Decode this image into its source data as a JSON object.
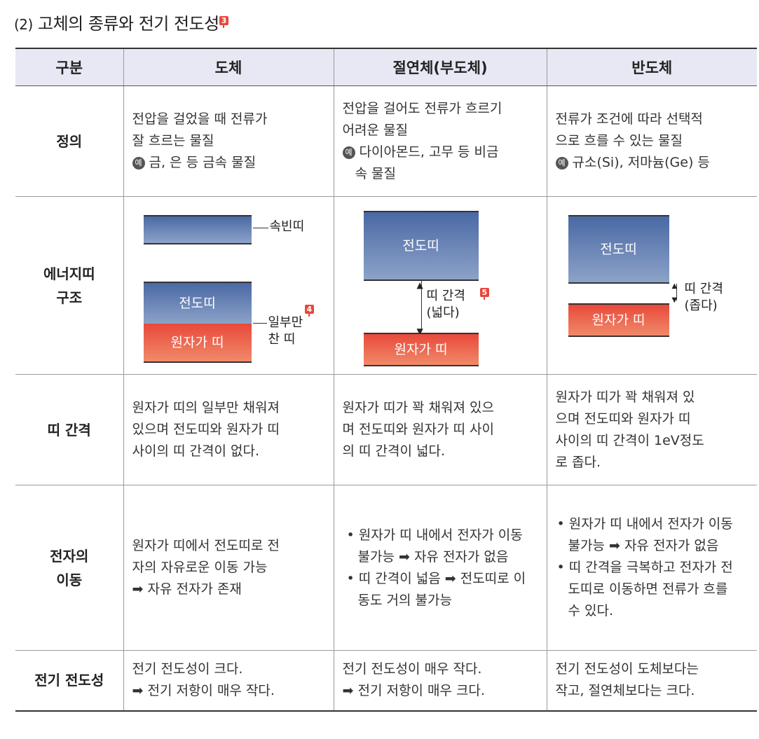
{
  "title": {
    "number": "(2)",
    "text": "고체의 종류와 전기 전도성",
    "tag": "3"
  },
  "table": {
    "headers": [
      "구분",
      "도체",
      "절연체(부도체)",
      "반도체"
    ],
    "rows": {
      "definition": {
        "label": "정의",
        "conductor": [
          "전압을 걸었을 때 전류가",
          "잘 흐르는 물질",
          "금, 은 등 금속 물질"
        ],
        "insulator": [
          "전압을 걸어도 전류가 흐르기",
          "어려운 물질",
          "다이아몬드, 고무 등 비금",
          "속 물질"
        ],
        "semiconductor": [
          "전류가 조건에 따라 선택적",
          "으로 흐를 수 있는 물질",
          "규소(Si), 저마늄(Ge) 등"
        ],
        "example_mark": "예"
      },
      "band_structure": {
        "label": [
          "에너지띠",
          "구조"
        ],
        "conductor": {
          "empty_band": "속빈띠",
          "conduction_band": "전도띠",
          "valence_band": "원자가 띠",
          "partial_label": [
            "일부만",
            "찬 띠"
          ],
          "tag": "4"
        },
        "insulator": {
          "conduction_band": "전도띠",
          "valence_band": "원자가 띠",
          "gap_label": [
            "띠 간격",
            "(넓다)"
          ],
          "tag": "5"
        },
        "semiconductor": {
          "conduction_band": "전도띠",
          "valence_band": "원자가 띠",
          "gap_label": [
            "띠 간격",
            "(좁다)"
          ]
        }
      },
      "band_gap": {
        "label": "띠 간격",
        "conductor": [
          "원자가 띠의 일부만 채워져",
          "있으며 전도띠와 원자가 띠",
          "사이의 띠 간격이 없다."
        ],
        "insulator": [
          "원자가 띠가 꽉 채워져 있으",
          "며 전도띠와 원자가 띠 사이",
          "의 띠 간격이 넓다."
        ],
        "semiconductor": [
          "원자가 띠가 꽉 채워져 있",
          "으며 전도띠와 원자가 띠",
          "사이의 띠 간격이 1eV정도",
          "로 좁다."
        ]
      },
      "electron_movement": {
        "label": [
          "전자의",
          "이동"
        ],
        "conductor": [
          "원자가 띠에서 전도띠로 전",
          "자의 자유로운 이동 가능",
          "➡ 자유 전자가 존재"
        ],
        "insulator": [
          "원자가 띠 내에서 전자가 이동 불가능 ➡ 자유 전자가 없음",
          "띠 간격이 넓음 ➡ 전도띠로 이동도 거의 불가능"
        ],
        "semiconductor": [
          "원자가 띠 내에서 전자가 이동 불가능 ➡ 자유 전자가 없음",
          "띠 간격을 극복하고 전자가 전도띠로 이동하면 전류가 흐를 수 있다."
        ]
      },
      "conductivity": {
        "label": "전기 전도성",
        "conductor": [
          "전기 전도성이 크다.",
          "➡ 전기 저항이 매우 작다."
        ],
        "insulator": [
          "전기 전도성이 매우 작다.",
          "➡ 전기 저항이 매우 크다."
        ],
        "semiconductor": [
          "전기 전도성이 도체보다는",
          "작고, 절연체보다는 크다."
        ]
      }
    }
  },
  "colors": {
    "header_bg": "#e7e8f3",
    "conduction_band": "#4a69a4",
    "valence_band": "#e9493a",
    "tag": "#e8473c"
  }
}
